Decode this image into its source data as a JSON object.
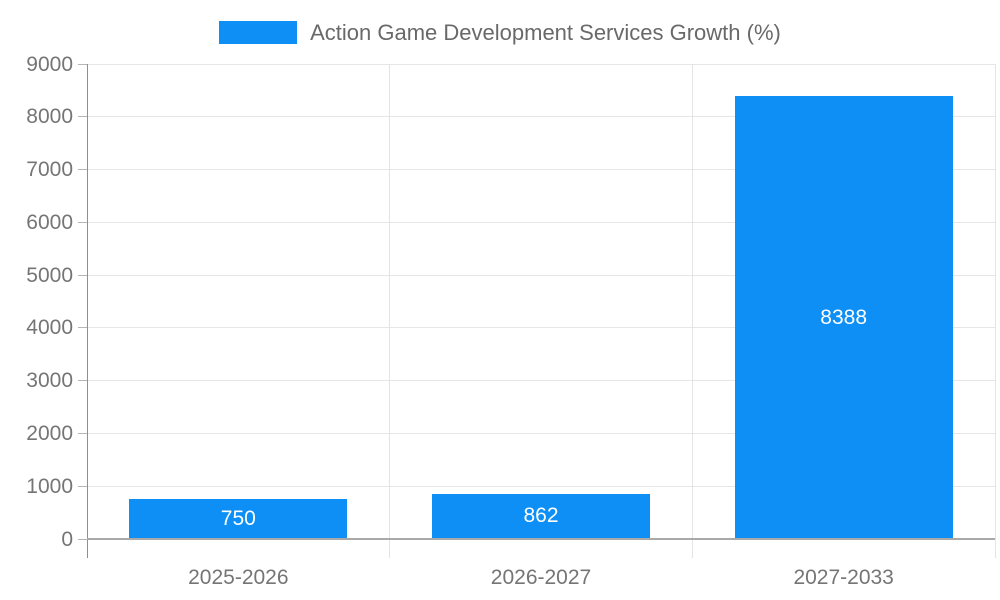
{
  "chart_data": {
    "type": "bar",
    "title": "Action Game Development Services Growth (%)",
    "categories": [
      "2025-2026",
      "2026-2027",
      "2027-2033"
    ],
    "values": [
      750,
      862,
      8388
    ],
    "value_labels": [
      "750",
      "862",
      "8388"
    ],
    "xlabel": "",
    "ylabel": "",
    "ylim": [
      0,
      9000
    ],
    "ytick_step": 1000,
    "ytick_labels": [
      "0",
      "1000",
      "2000",
      "3000",
      "4000",
      "5000",
      "6000",
      "7000",
      "8000",
      "9000"
    ],
    "grid": true,
    "legend_position": "top",
    "colors": {
      "bar": "#0d8ff5",
      "gridline": "#e6e6e6",
      "axis_line": "#8f8f8f",
      "baseline": "#a9a9a9",
      "axis_text": "#757575",
      "title_text": "#696969",
      "value_text": "#ffffff",
      "background": "#ffffff"
    }
  }
}
